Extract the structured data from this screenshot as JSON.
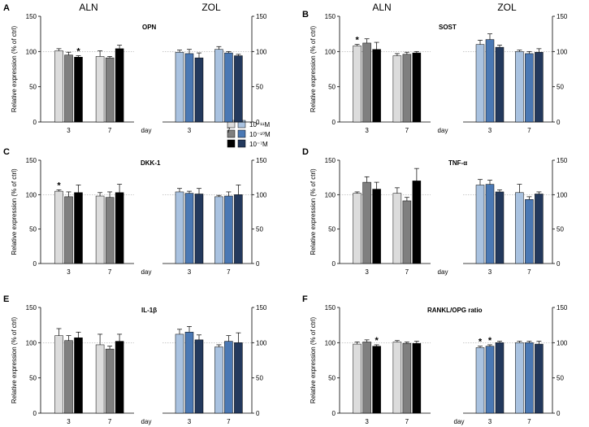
{
  "legend": {
    "entries": [
      "10⁻¹¹M",
      "10⁻¹⁰M",
      "10⁻⁷M"
    ],
    "aln_colors": [
      "#dcdcdc",
      "#7f7f7f",
      "#000000"
    ],
    "zol_colors": [
      "#a9c2e0",
      "#4a78b4",
      "#23395d"
    ]
  },
  "group_labels": {
    "aln": "ALN",
    "zol": "ZOL"
  },
  "chart_data": [
    {
      "panel": "A",
      "title": "OPN",
      "type": "bar",
      "ylabel": "Relative expression (% of ctrl)",
      "ylim": [
        0,
        150
      ],
      "yticks": [
        0,
        50,
        100,
        150
      ],
      "categories": [
        "3",
        "7"
      ],
      "xunit": "day",
      "aln": {
        "series": [
          {
            "name": "10⁻¹¹M",
            "values": [
              101,
              93
            ],
            "errors": [
              3,
              8
            ]
          },
          {
            "name": "10⁻¹⁰M",
            "values": [
              95,
              91
            ],
            "errors": [
              4,
              2
            ]
          },
          {
            "name": "10⁻⁷M",
            "values": [
              92,
              104
            ],
            "errors": [
              2,
              5
            ]
          }
        ],
        "stars": [
          {
            "category": 0,
            "series": 2,
            "label": "*"
          }
        ]
      },
      "zol": {
        "series": [
          {
            "name": "10⁻¹¹M",
            "values": [
              99,
              103
            ],
            "errors": [
              3,
              4
            ]
          },
          {
            "name": "10⁻¹⁰M",
            "values": [
              97,
              98
            ],
            "errors": [
              6,
              2
            ]
          },
          {
            "name": "10⁻⁷M",
            "values": [
              91,
              94
            ],
            "errors": [
              7,
              2
            ]
          }
        ],
        "stars": []
      }
    },
    {
      "panel": "B",
      "title": "SOST",
      "type": "bar",
      "ylabel": "Relative expression (% of ctrl)",
      "ylim": [
        0,
        150
      ],
      "yticks": [
        0,
        50,
        100,
        150
      ],
      "categories": [
        "3",
        "7"
      ],
      "xunit": "day",
      "aln": {
        "series": [
          {
            "name": "10⁻¹¹M",
            "values": [
              108,
              94
            ],
            "errors": [
              2,
              3
            ]
          },
          {
            "name": "10⁻¹⁰M",
            "values": [
              112,
              96
            ],
            "errors": [
              6,
              3
            ]
          },
          {
            "name": "10⁻⁷M",
            "values": [
              103,
              98
            ],
            "errors": [
              10,
              2
            ]
          }
        ],
        "stars": [
          {
            "category": 0,
            "series": 0,
            "label": "*"
          }
        ]
      },
      "zol": {
        "series": [
          {
            "name": "10⁻¹¹M",
            "values": [
              110,
              100
            ],
            "errors": [
              6,
              2
            ]
          },
          {
            "name": "10⁻¹⁰M",
            "values": [
              117,
              97
            ],
            "errors": [
              8,
              3
            ]
          },
          {
            "name": "10⁻⁷M",
            "values": [
              106,
              99
            ],
            "errors": [
              3,
              5
            ]
          }
        ],
        "stars": []
      }
    },
    {
      "panel": "C",
      "title": "DKK-1",
      "type": "bar",
      "ylabel": "Relative expression (% of ctrl)",
      "ylim": [
        0,
        150
      ],
      "yticks": [
        0,
        50,
        100,
        150
      ],
      "categories": [
        "3",
        "7"
      ],
      "xunit": "day",
      "aln": {
        "series": [
          {
            "name": "10⁻¹¹M",
            "values": [
              105,
              98
            ],
            "errors": [
              2,
              5
            ]
          },
          {
            "name": "10⁻¹⁰M",
            "values": [
              97,
              96
            ],
            "errors": [
              7,
              8
            ]
          },
          {
            "name": "10⁻⁷M",
            "values": [
              103,
              103
            ],
            "errors": [
              11,
              12
            ]
          }
        ],
        "stars": [
          {
            "category": 0,
            "series": 0,
            "label": "*"
          }
        ]
      },
      "zol": {
        "series": [
          {
            "name": "10⁻¹¹M",
            "values": [
              104,
              97
            ],
            "errors": [
              5,
              2
            ]
          },
          {
            "name": "10⁻¹⁰M",
            "values": [
              102,
              98
            ],
            "errors": [
              3,
              6
            ]
          },
          {
            "name": "10⁻⁷M",
            "values": [
              101,
              100
            ],
            "errors": [
              8,
              14
            ]
          }
        ],
        "stars": []
      }
    },
    {
      "panel": "D",
      "title": "TNF-α",
      "type": "bar",
      "ylabel": "Relative expression (% of ctrl)",
      "ylim": [
        0,
        150
      ],
      "yticks": [
        0,
        50,
        100,
        150
      ],
      "categories": [
        "3",
        "7"
      ],
      "xunit": "day",
      "aln": {
        "series": [
          {
            "name": "10⁻¹¹M",
            "values": [
              102,
              102
            ],
            "errors": [
              2,
              8
            ]
          },
          {
            "name": "10⁻¹⁰M",
            "values": [
              118,
              91
            ],
            "errors": [
              8,
              5
            ]
          },
          {
            "name": "10⁻⁷M",
            "values": [
              108,
              120
            ],
            "errors": [
              10,
              18
            ]
          }
        ],
        "stars": []
      },
      "zol": {
        "series": [
          {
            "name": "10⁻¹¹M",
            "values": [
              114,
              103
            ],
            "errors": [
              8,
              12
            ]
          },
          {
            "name": "10⁻¹⁰M",
            "values": [
              115,
              93
            ],
            "errors": [
              6,
              4
            ]
          },
          {
            "name": "10⁻⁷M",
            "values": [
              104,
              101
            ],
            "errors": [
              3,
              3
            ]
          }
        ],
        "stars": []
      }
    },
    {
      "panel": "E",
      "title": "IL-1β",
      "type": "bar",
      "ylabel": "Relative expression (% of ctrl)",
      "ylim": [
        0,
        150
      ],
      "yticks": [
        0,
        50,
        100,
        150
      ],
      "categories": [
        "3",
        "7"
      ],
      "xunit": "day",
      "aln": {
        "series": [
          {
            "name": "10⁻¹¹M",
            "values": [
              110,
              97
            ],
            "errors": [
              10,
              15
            ]
          },
          {
            "name": "10⁻¹⁰M",
            "values": [
              103,
              91
            ],
            "errors": [
              7,
              4
            ]
          },
          {
            "name": "10⁻⁷M",
            "values": [
              107,
              102
            ],
            "errors": [
              8,
              10
            ]
          }
        ],
        "stars": []
      },
      "zol": {
        "series": [
          {
            "name": "10⁻¹¹M",
            "values": [
              112,
              94
            ],
            "errors": [
              7,
              3
            ]
          },
          {
            "name": "10⁻¹⁰M",
            "values": [
              115,
              102
            ],
            "errors": [
              8,
              8
            ]
          },
          {
            "name": "10⁻⁷M",
            "values": [
              104,
              100
            ],
            "errors": [
              7,
              14
            ]
          }
        ],
        "stars": []
      }
    },
    {
      "panel": "F",
      "title": "RANKL/OPG ratio",
      "type": "bar",
      "ylabel": "Relative expression (% of ctrl)",
      "ylim": [
        0,
        150
      ],
      "yticks": [
        0,
        50,
        100,
        150
      ],
      "categories": [
        "3",
        "7"
      ],
      "xunit": "day",
      "aln": {
        "series": [
          {
            "name": "10⁻¹¹M",
            "values": [
              98,
              101
            ],
            "errors": [
              3,
              2
            ]
          },
          {
            "name": "10⁻¹⁰M",
            "values": [
              101,
              99
            ],
            "errors": [
              3,
              2
            ]
          },
          {
            "name": "10⁻⁷M",
            "values": [
              95,
              99
            ],
            "errors": [
              2,
              3
            ]
          }
        ],
        "stars": [
          {
            "category": 0,
            "series": 2,
            "label": "*"
          }
        ]
      },
      "zol": {
        "series": [
          {
            "name": "10⁻¹¹M",
            "values": [
              93,
              100
            ],
            "errors": [
              2,
              2
            ]
          },
          {
            "name": "10⁻¹⁰M",
            "values": [
              95,
              100
            ],
            "errors": [
              2,
              2
            ]
          },
          {
            "name": "10⁻⁷M",
            "values": [
              100,
              98
            ],
            "errors": [
              2,
              4
            ]
          }
        ],
        "stars": [
          {
            "category": 0,
            "series": 0,
            "label": "*"
          },
          {
            "category": 0,
            "series": 1,
            "label": "*"
          }
        ]
      }
    }
  ]
}
